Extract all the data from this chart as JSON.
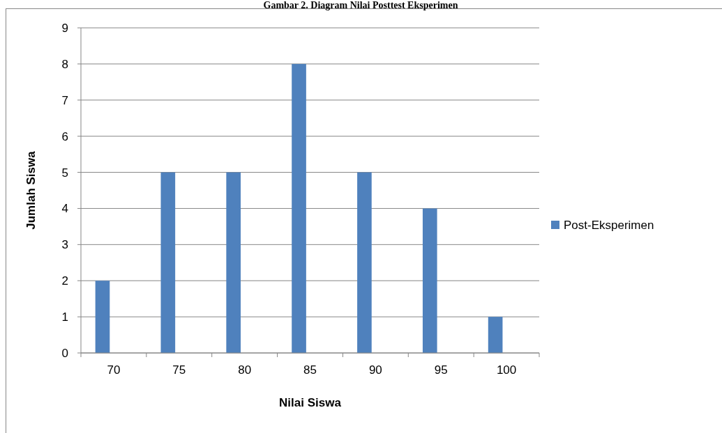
{
  "chart_data": {
    "type": "bar",
    "title": "Gambar 2. Diagram Nilai Posttest Eksperimen",
    "xlabel": "Nilai Siswa",
    "ylabel": "Jumlah Siswa",
    "categories": [
      "70",
      "75",
      "80",
      "85",
      "90",
      "95",
      "100"
    ],
    "series": [
      {
        "name": "Post-Eksperimen",
        "color": "#4f81bd",
        "values": [
          2,
          5,
          5,
          8,
          5,
          4,
          1
        ]
      }
    ],
    "ylim": [
      0,
      9
    ],
    "yticks": [
      0,
      1,
      2,
      3,
      4,
      5,
      6,
      7,
      8,
      9
    ],
    "grid": "y",
    "legend": "right"
  }
}
